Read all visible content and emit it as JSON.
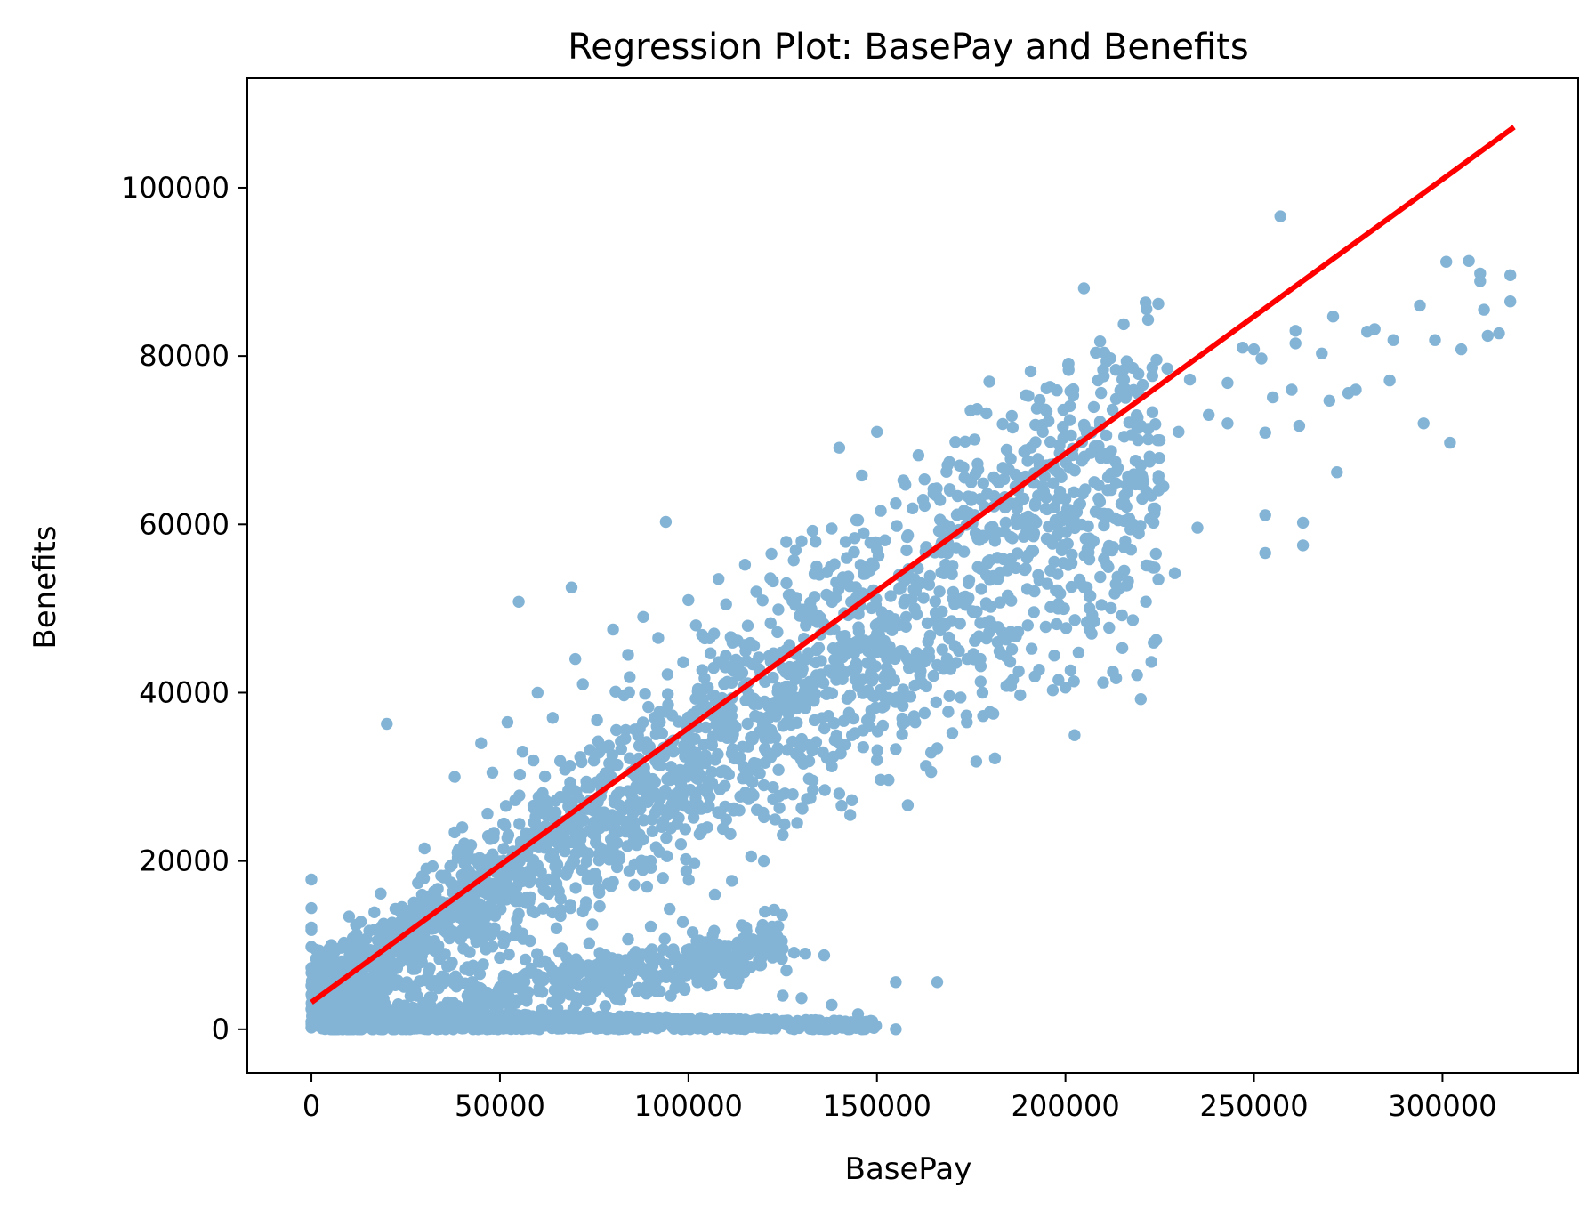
{
  "chart_data": {
    "type": "scatter",
    "title": "Regression Plot: BasePay and Benefits",
    "xlabel": "BasePay",
    "ylabel": "Benefits",
    "xlim": [
      -17000,
      336000
    ],
    "ylim": [
      -5200,
      113000
    ],
    "xticks": [
      0,
      50000,
      100000,
      150000,
      200000,
      250000,
      300000
    ],
    "xtick_labels": [
      "0",
      "50000",
      "100000",
      "150000",
      "200000",
      "250000",
      "300000"
    ],
    "yticks": [
      0,
      20000,
      40000,
      60000,
      80000,
      100000
    ],
    "ytick_labels": [
      "0",
      "20000",
      "40000",
      "60000",
      "80000",
      "100000"
    ],
    "grid": false,
    "legend": "none",
    "colors": {
      "points": "#1f77b4",
      "line": "#ff0000"
    },
    "series": [
      {
        "kind": "scatter",
        "alpha": 0.55,
        "points": [
          [
            0,
            17800
          ],
          [
            0,
            14400
          ],
          [
            0,
            12100
          ],
          [
            0,
            11800
          ],
          [
            0,
            9800
          ],
          [
            0,
            7300
          ],
          [
            0,
            5200
          ],
          [
            0,
            2400
          ],
          [
            0,
            900
          ],
          [
            0,
            200
          ],
          [
            20000,
            36300
          ],
          [
            55000,
            50800
          ],
          [
            69000,
            52500
          ],
          [
            94000,
            60300
          ],
          [
            140000,
            69100
          ],
          [
            150000,
            71000
          ],
          [
            146000,
            65800
          ],
          [
            161000,
            68200
          ],
          [
            186000,
            71500
          ],
          [
            196000,
            69800
          ],
          [
            227000,
            78500
          ],
          [
            233000,
            77200
          ],
          [
            243000,
            76800
          ],
          [
            247000,
            81000
          ],
          [
            250000,
            80800
          ],
          [
            252000,
            79700
          ],
          [
            257000,
            96600
          ],
          [
            261000,
            83000
          ],
          [
            261000,
            81500
          ],
          [
            268000,
            80300
          ],
          [
            271000,
            84700
          ],
          [
            280000,
            82900
          ],
          [
            282000,
            83200
          ],
          [
            287000,
            81900
          ],
          [
            294000,
            86000
          ],
          [
            301000,
            91200
          ],
          [
            307000,
            91300
          ],
          [
            310000,
            89800
          ],
          [
            310000,
            88900
          ],
          [
            318000,
            89600
          ],
          [
            311000,
            85500
          ],
          [
            312000,
            82400
          ],
          [
            315000,
            82700
          ],
          [
            318000,
            86500
          ],
          [
            305000,
            80800
          ],
          [
            298000,
            81900
          ],
          [
            286000,
            77100
          ],
          [
            277000,
            76000
          ],
          [
            275000,
            75600
          ],
          [
            270000,
            74700
          ],
          [
            260000,
            76000
          ],
          [
            255000,
            75100
          ],
          [
            253000,
            70900
          ],
          [
            262000,
            71700
          ],
          [
            272000,
            66200
          ],
          [
            295000,
            72000
          ],
          [
            302000,
            69700
          ],
          [
            253000,
            61100
          ],
          [
            263000,
            60200
          ],
          [
            263000,
            57500
          ],
          [
            253000,
            56600
          ],
          [
            235000,
            59600
          ],
          [
            229000,
            54200
          ],
          [
            215000,
            49200
          ],
          [
            210000,
            41200
          ],
          [
            200000,
            40600
          ],
          [
            188000,
            39700
          ],
          [
            178000,
            40000
          ],
          [
            170000,
            35200
          ],
          [
            166000,
            33400
          ],
          [
            163000,
            31300
          ],
          [
            150000,
            32000
          ],
          [
            140000,
            28000
          ],
          [
            130000,
            26300
          ],
          [
            125000,
            23100
          ],
          [
            120000,
            20000
          ],
          [
            107000,
            16000
          ],
          [
            95000,
            14300
          ],
          [
            90000,
            12200
          ],
          [
            84000,
            10700
          ],
          [
            96000,
            9500
          ],
          [
            110000,
            9100
          ],
          [
            120000,
            9900
          ],
          [
            128000,
            9100
          ],
          [
            131000,
            9000
          ],
          [
            136000,
            8800
          ],
          [
            126000,
            7000
          ],
          [
            105000,
            5200
          ],
          [
            99000,
            4700
          ],
          [
            82000,
            3500
          ],
          [
            125000,
            4000
          ],
          [
            130000,
            3700
          ],
          [
            138000,
            2900
          ],
          [
            145000,
            1800
          ],
          [
            155000,
            5600
          ],
          [
            166000,
            5600
          ],
          [
            136000,
            0
          ],
          [
            146000,
            0
          ],
          [
            155000,
            0
          ],
          [
            120000,
            200
          ],
          [
            100000,
            100
          ],
          [
            80000,
            300
          ],
          [
            60000,
            200
          ],
          [
            40000,
            100
          ],
          [
            30000,
            400
          ],
          [
            10000,
            13400
          ],
          [
            13000,
            8200
          ],
          [
            18000,
            10000
          ],
          [
            25000,
            14000
          ],
          [
            30000,
            21500
          ],
          [
            38000,
            30000
          ],
          [
            45000,
            34000
          ],
          [
            52000,
            36500
          ],
          [
            60000,
            40000
          ],
          [
            70000,
            44000
          ],
          [
            80000,
            47500
          ],
          [
            88000,
            49000
          ],
          [
            100000,
            51000
          ],
          [
            108000,
            53500
          ],
          [
            115000,
            55200
          ],
          [
            122000,
            56500
          ],
          [
            130000,
            58000
          ],
          [
            138000,
            59500
          ],
          [
            145000,
            60500
          ],
          [
            155000,
            62500
          ],
          [
            165000,
            64200
          ],
          [
            175000,
            65000
          ],
          [
            185000,
            66500
          ],
          [
            195000,
            67000
          ],
          [
            205000,
            68000
          ],
          [
            212000,
            66000
          ],
          [
            220000,
            67000
          ],
          [
            225000,
            70000
          ],
          [
            230000,
            71000
          ],
          [
            238000,
            73000
          ],
          [
            243000,
            72000
          ],
          [
            226000,
            64500
          ],
          [
            218000,
            60000
          ],
          [
            224000,
            56500
          ],
          [
            205000,
            52500
          ],
          [
            198000,
            50000
          ],
          [
            190000,
            48000
          ],
          [
            182000,
            46000
          ],
          [
            174000,
            44000
          ],
          [
            165000,
            42000
          ],
          [
            156000,
            39000
          ],
          [
            148000,
            36000
          ],
          [
            140000,
            34000
          ],
          [
            130000,
            32000
          ],
          [
            120000,
            29000
          ],
          [
            112000,
            26000
          ],
          [
            105000,
            24000
          ],
          [
            98000,
            22000
          ],
          [
            90000,
            20000
          ],
          [
            80000,
            17500
          ],
          [
            72000,
            14000
          ],
          [
            65000,
            12000
          ],
          [
            58000,
            10500
          ],
          [
            50000,
            8500
          ],
          [
            42000,
            7000
          ],
          [
            35000,
            5500
          ],
          [
            28000,
            4000
          ],
          [
            20000,
            2500
          ],
          [
            12000,
            1500
          ],
          [
            6000,
            800
          ],
          [
            70000,
            8000
          ],
          [
            78000,
            8800
          ],
          [
            86000,
            9200
          ],
          [
            60000,
            6500
          ],
          [
            50000,
            5000
          ],
          [
            45000,
            3800
          ],
          [
            90000,
            6000
          ],
          [
            75000,
            4500
          ],
          [
            40000,
            24000
          ],
          [
            48000,
            30500
          ],
          [
            56000,
            33000
          ],
          [
            64000,
            37000
          ],
          [
            72000,
            41000
          ],
          [
            84000,
            44500
          ],
          [
            92000,
            46500
          ],
          [
            102000,
            48000
          ],
          [
            110000,
            50500
          ],
          [
            118000,
            52000
          ],
          [
            126000,
            53000
          ],
          [
            134000,
            55000
          ],
          [
            142000,
            56000
          ],
          [
            150000,
            57000
          ],
          [
            158000,
            58500
          ],
          [
            168000,
            60000
          ],
          [
            176000,
            61000
          ],
          [
            184000,
            62000
          ],
          [
            192000,
            62500
          ],
          [
            200000,
            63000
          ],
          [
            208000,
            61500
          ],
          [
            214000,
            60500
          ],
          [
            160000,
            50000
          ],
          [
            150000,
            47000
          ],
          [
            140000,
            45000
          ],
          [
            128000,
            42000
          ],
          [
            118000,
            39000
          ],
          [
            108000,
            36000
          ],
          [
            96000,
            33000
          ],
          [
            86000,
            30000
          ],
          [
            76000,
            27000
          ],
          [
            66000,
            24000
          ],
          [
            56000,
            21000
          ],
          [
            46000,
            18000
          ],
          [
            36000,
            14000
          ],
          [
            26000,
            10000
          ],
          [
            16000,
            6000
          ],
          [
            8000,
            3000
          ]
        ]
      },
      {
        "kind": "regression_line",
        "x": [
          0,
          319000
        ],
        "y": [
          3200,
          107200
        ]
      }
    ],
    "dense_bands": [
      {
        "x0": 0,
        "x1": 245000,
        "lower": [
          [
            0,
            0
          ],
          [
            40000,
            0
          ],
          [
            80000,
            0
          ],
          [
            120000,
            0
          ],
          [
            160000,
            0
          ],
          [
            200000,
            0
          ],
          [
            245000,
            0
          ]
        ],
        "upper": [
          [
            0,
            3000
          ],
          [
            40000,
            2200
          ],
          [
            80000,
            1500
          ],
          [
            120000,
            1400
          ],
          [
            160000,
            1200
          ],
          [
            200000,
            900
          ],
          [
            245000,
            600
          ]
        ],
        "note": ""
      }
    ]
  }
}
